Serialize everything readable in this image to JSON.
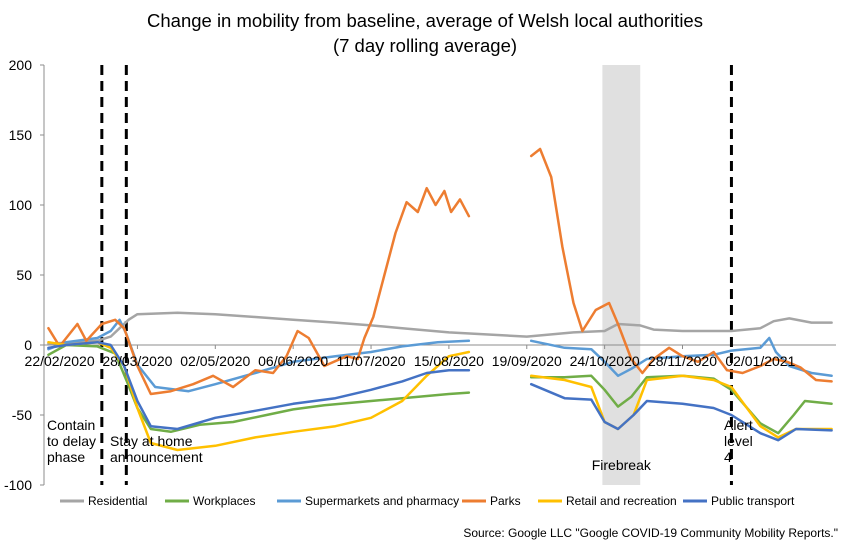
{
  "chart_data": {
    "type": "line",
    "title": "Change in mobility from baseline, average of Welsh local authorities",
    "subtitle": "(7 day rolling average)",
    "ylim": [
      -100,
      200
    ],
    "y_ticks": [
      -100,
      -50,
      0,
      50,
      100,
      150,
      200
    ],
    "x_range": [
      "2020-02-15",
      "2021-02-05"
    ],
    "x_tick_labels": [
      "22/02/2020",
      "28/03/2020",
      "02/05/2020",
      "06/06/2020",
      "11/07/2020",
      "15/08/2020",
      "19/09/2020",
      "24/10/2020",
      "28/11/2020",
      "02/01/2021"
    ],
    "x_tick_dates": [
      "2020-02-22",
      "2020-03-28",
      "2020-05-02",
      "2020-06-06",
      "2020-07-11",
      "2020-08-15",
      "2020-09-19",
      "2020-10-24",
      "2020-11-28",
      "2021-01-02"
    ],
    "grid": false,
    "legend_position": "bottom",
    "series": [
      {
        "name": "Residential",
        "color": "#a5a5a5",
        "segments": [
          [
            [
              "2020-02-17",
              1
            ],
            [
              "2020-03-01",
              2
            ],
            [
              "2020-03-10",
              3
            ],
            [
              "2020-03-16",
              6
            ],
            [
              "2020-03-20",
              12
            ],
            [
              "2020-03-24",
              18
            ],
            [
              "2020-03-28",
              22
            ],
            [
              "2020-04-15",
              23
            ],
            [
              "2020-05-02",
              22
            ],
            [
              "2020-05-20",
              20
            ],
            [
              "2020-06-06",
              18
            ],
            [
              "2020-06-25",
              16
            ],
            [
              "2020-07-11",
              14
            ],
            [
              "2020-07-25",
              12
            ],
            [
              "2020-08-15",
              9
            ],
            [
              "2020-09-19",
              6
            ],
            [
              "2020-10-10",
              9
            ],
            [
              "2020-10-24",
              10
            ],
            [
              "2020-10-30",
              15
            ],
            [
              "2020-11-09",
              14
            ],
            [
              "2020-11-15",
              11
            ],
            [
              "2020-11-28",
              10
            ],
            [
              "2020-12-20",
              10
            ],
            [
              "2021-01-02",
              12
            ],
            [
              "2021-01-08",
              17
            ],
            [
              "2021-01-15",
              19
            ],
            [
              "2021-01-25",
              16
            ],
            [
              "2021-02-03",
              16
            ]
          ]
        ]
      },
      {
        "name": "Workplaces",
        "color": "#70ad47",
        "segments": [
          [
            [
              "2020-02-17",
              -7
            ],
            [
              "2020-02-25",
              0
            ],
            [
              "2020-03-10",
              -1
            ],
            [
              "2020-03-18",
              -6
            ],
            [
              "2020-03-23",
              -25
            ],
            [
              "2020-03-28",
              -45
            ],
            [
              "2020-04-03",
              -60
            ],
            [
              "2020-04-12",
              -62
            ],
            [
              "2020-04-25",
              -57
            ],
            [
              "2020-05-10",
              -55
            ],
            [
              "2020-05-25",
              -50
            ],
            [
              "2020-06-06",
              -46
            ],
            [
              "2020-06-20",
              -43
            ],
            [
              "2020-07-11",
              -40
            ],
            [
              "2020-07-25",
              -38
            ],
            [
              "2020-08-15",
              -35
            ],
            [
              "2020-08-24",
              -34
            ]
          ],
          [
            [
              "2020-09-21",
              -23
            ],
            [
              "2020-10-06",
              -23
            ],
            [
              "2020-10-18",
              -22
            ],
            [
              "2020-10-24",
              -32
            ],
            [
              "2020-10-30",
              -44
            ],
            [
              "2020-11-05",
              -37
            ],
            [
              "2020-11-12",
              -23
            ],
            [
              "2020-11-28",
              -22
            ],
            [
              "2020-12-12",
              -24
            ],
            [
              "2020-12-20",
              -32
            ],
            [
              "2021-01-02",
              -56
            ],
            [
              "2021-01-10",
              -63
            ],
            [
              "2021-01-17",
              -50
            ],
            [
              "2021-01-22",
              -40
            ],
            [
              "2021-02-03",
              -42
            ]
          ]
        ]
      },
      {
        "name": "Supermarkets and pharmacy",
        "color": "#5b9bd5",
        "segments": [
          [
            [
              "2020-02-17",
              -3
            ],
            [
              "2020-02-25",
              2
            ],
            [
              "2020-03-10",
              5
            ],
            [
              "2020-03-16",
              10
            ],
            [
              "2020-03-20",
              18
            ],
            [
              "2020-03-23",
              8
            ],
            [
              "2020-03-28",
              -14
            ],
            [
              "2020-04-05",
              -30
            ],
            [
              "2020-04-20",
              -33
            ],
            [
              "2020-05-02",
              -28
            ],
            [
              "2020-05-20",
              -20
            ],
            [
              "2020-06-06",
              -12
            ],
            [
              "2020-06-25",
              -8
            ],
            [
              "2020-07-11",
              -5
            ],
            [
              "2020-07-25",
              -1
            ],
            [
              "2020-08-10",
              2
            ],
            [
              "2020-08-24",
              3
            ]
          ],
          [
            [
              "2020-09-21",
              3
            ],
            [
              "2020-10-06",
              -2
            ],
            [
              "2020-10-18",
              -3
            ],
            [
              "2020-10-24",
              -12
            ],
            [
              "2020-10-30",
              -22
            ],
            [
              "2020-11-05",
              -17
            ],
            [
              "2020-11-12",
              -10
            ],
            [
              "2020-11-28",
              -8
            ],
            [
              "2020-12-12",
              -7
            ],
            [
              "2020-12-20",
              -4
            ],
            [
              "2021-01-02",
              -2
            ],
            [
              "2021-01-06",
              5
            ],
            [
              "2021-01-09",
              -5
            ],
            [
              "2021-01-15",
              -15
            ],
            [
              "2021-01-25",
              -20
            ],
            [
              "2021-02-03",
              -22
            ]
          ]
        ]
      },
      {
        "name": "Parks",
        "color": "#ed7d31",
        "segments": [
          [
            [
              "2020-02-17",
              12
            ],
            [
              "2020-02-22",
              -1
            ],
            [
              "2020-03-01",
              15
            ],
            [
              "2020-03-05",
              3
            ],
            [
              "2020-03-12",
              15
            ],
            [
              "2020-03-18",
              18
            ],
            [
              "2020-03-22",
              12
            ],
            [
              "2020-03-28",
              -15
            ],
            [
              "2020-04-03",
              -35
            ],
            [
              "2020-04-12",
              -33
            ],
            [
              "2020-04-22",
              -28
            ],
            [
              "2020-05-01",
              -22
            ],
            [
              "2020-05-10",
              -30
            ],
            [
              "2020-05-20",
              -18
            ],
            [
              "2020-05-28",
              -20
            ],
            [
              "2020-06-03",
              -8
            ],
            [
              "2020-06-08",
              10
            ],
            [
              "2020-06-13",
              5
            ],
            [
              "2020-06-20",
              -15
            ],
            [
              "2020-06-30",
              -8
            ],
            [
              "2020-07-05",
              -10
            ],
            [
              "2020-07-08",
              5
            ],
            [
              "2020-07-12",
              20
            ],
            [
              "2020-07-17",
              50
            ],
            [
              "2020-07-22",
              80
            ],
            [
              "2020-07-27",
              102
            ],
            [
              "2020-08-01",
              95
            ],
            [
              "2020-08-05",
              112
            ],
            [
              "2020-08-09",
              100
            ],
            [
              "2020-08-13",
              110
            ],
            [
              "2020-08-16",
              95
            ],
            [
              "2020-08-20",
              104
            ],
            [
              "2020-08-24",
              92
            ]
          ],
          [
            [
              "2020-09-21",
              135
            ],
            [
              "2020-09-25",
              140
            ],
            [
              "2020-09-30",
              120
            ],
            [
              "2020-10-05",
              70
            ],
            [
              "2020-10-10",
              30
            ],
            [
              "2020-10-14",
              10
            ],
            [
              "2020-10-20",
              25
            ],
            [
              "2020-10-26",
              30
            ],
            [
              "2020-10-30",
              15
            ],
            [
              "2020-11-05",
              -10
            ],
            [
              "2020-11-10",
              -20
            ],
            [
              "2020-11-15",
              -10
            ],
            [
              "2020-11-22",
              -2
            ],
            [
              "2020-11-28",
              -8
            ],
            [
              "2020-12-05",
              -12
            ],
            [
              "2020-12-12",
              -5
            ],
            [
              "2020-12-18",
              -18
            ],
            [
              "2020-12-25",
              -20
            ],
            [
              "2021-01-02",
              -15
            ],
            [
              "2021-01-08",
              -10
            ],
            [
              "2021-01-14",
              -12
            ],
            [
              "2021-01-20",
              -16
            ],
            [
              "2021-01-27",
              -25
            ],
            [
              "2021-02-03",
              -26
            ]
          ]
        ]
      },
      {
        "name": "Retail and recreation",
        "color": "#ffc000",
        "segments": [
          [
            [
              "2020-02-17",
              2
            ],
            [
              "2020-02-25",
              0
            ],
            [
              "2020-03-10",
              2
            ],
            [
              "2020-03-16",
              -2
            ],
            [
              "2020-03-22",
              -15
            ],
            [
              "2020-03-28",
              -45
            ],
            [
              "2020-04-03",
              -70
            ],
            [
              "2020-04-15",
              -75
            ],
            [
              "2020-05-02",
              -72
            ],
            [
              "2020-05-20",
              -66
            ],
            [
              "2020-06-06",
              -62
            ],
            [
              "2020-06-25",
              -58
            ],
            [
              "2020-07-11",
              -52
            ],
            [
              "2020-07-25",
              -40
            ],
            [
              "2020-08-05",
              -22
            ],
            [
              "2020-08-15",
              -8
            ],
            [
              "2020-08-24",
              -5
            ]
          ],
          [
            [
              "2020-09-21",
              -22
            ],
            [
              "2020-10-06",
              -25
            ],
            [
              "2020-10-18",
              -30
            ],
            [
              "2020-10-24",
              -55
            ],
            [
              "2020-10-30",
              -60
            ],
            [
              "2020-11-06",
              -50
            ],
            [
              "2020-11-12",
              -25
            ],
            [
              "2020-11-28",
              -22
            ],
            [
              "2020-12-12",
              -25
            ],
            [
              "2020-12-20",
              -30
            ],
            [
              "2021-01-02",
              -58
            ],
            [
              "2021-01-10",
              -66
            ],
            [
              "2021-01-18",
              -60
            ],
            [
              "2021-02-03",
              -60
            ]
          ]
        ]
      },
      {
        "name": "Public transport",
        "color": "#4472c4",
        "segments": [
          [
            [
              "2020-02-17",
              -2
            ],
            [
              "2020-02-25",
              0
            ],
            [
              "2020-03-10",
              2
            ],
            [
              "2020-03-16",
              0
            ],
            [
              "2020-03-22",
              -15
            ],
            [
              "2020-03-28",
              -40
            ],
            [
              "2020-04-03",
              -58
            ],
            [
              "2020-04-15",
              -60
            ],
            [
              "2020-05-02",
              -52
            ],
            [
              "2020-05-20",
              -47
            ],
            [
              "2020-06-06",
              -42
            ],
            [
              "2020-06-25",
              -38
            ],
            [
              "2020-07-11",
              -32
            ],
            [
              "2020-07-25",
              -26
            ],
            [
              "2020-08-05",
              -20
            ],
            [
              "2020-08-15",
              -18
            ],
            [
              "2020-08-24",
              -18
            ]
          ],
          [
            [
              "2020-09-21",
              -28
            ],
            [
              "2020-10-06",
              -38
            ],
            [
              "2020-10-18",
              -39
            ],
            [
              "2020-10-24",
              -55
            ],
            [
              "2020-10-30",
              -60
            ],
            [
              "2020-11-06",
              -50
            ],
            [
              "2020-11-12",
              -40
            ],
            [
              "2020-11-28",
              -42
            ],
            [
              "2020-12-12",
              -45
            ],
            [
              "2020-12-20",
              -50
            ],
            [
              "2021-01-02",
              -63
            ],
            [
              "2021-01-10",
              -68
            ],
            [
              "2021-01-18",
              -60
            ],
            [
              "2021-02-03",
              -61
            ]
          ]
        ]
      }
    ],
    "events": [
      {
        "label_lines": [
          "Contain",
          "to delay",
          "phase"
        ],
        "date": "2020-03-12"
      },
      {
        "label_lines": [
          "Stay at home",
          "announcement"
        ],
        "date": "2020-03-23"
      },
      {
        "label_lines": [
          "Alert",
          "level",
          "4"
        ],
        "date": "2020-12-20"
      }
    ],
    "shaded_period": {
      "label": "Firebreak",
      "start": "2020-10-23",
      "end": "2020-11-09",
      "color": "#e0e0e0"
    },
    "source": "Source: Google LLC \"Google COVID-19 Community Mobility Reports.\""
  }
}
